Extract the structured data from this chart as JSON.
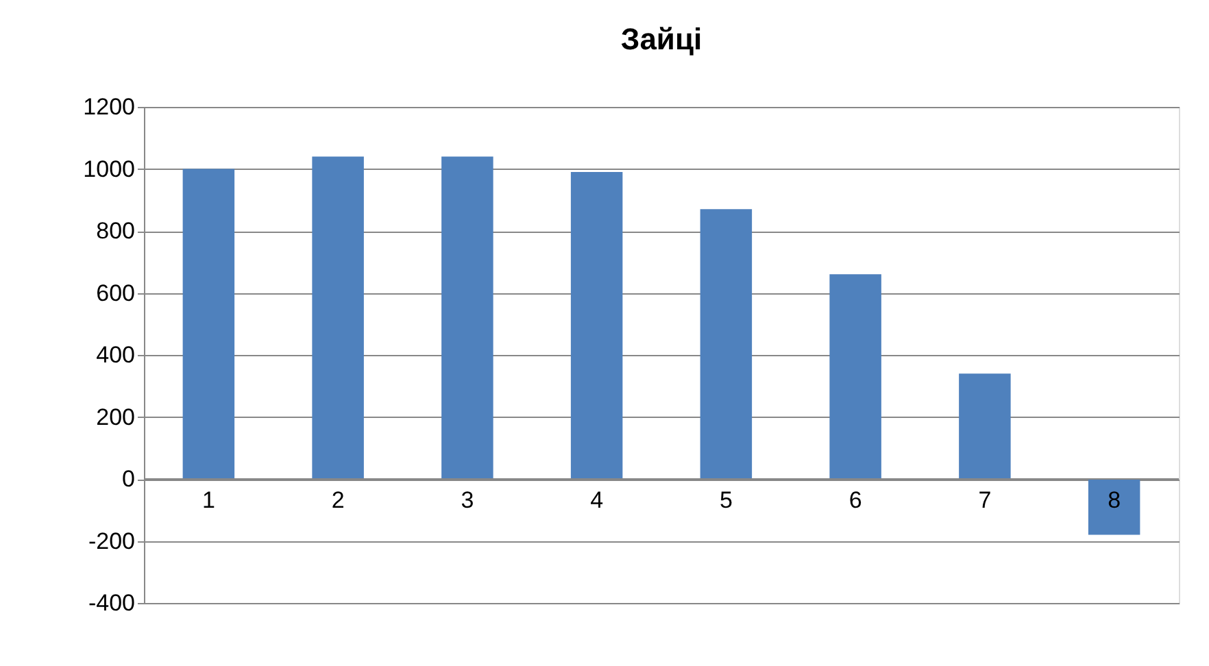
{
  "chart_data": {
    "type": "bar",
    "title": "Зайці",
    "categories": [
      "1",
      "2",
      "3",
      "4",
      "5",
      "6",
      "7",
      "8"
    ],
    "values": [
      1000,
      1040,
      1040,
      990,
      870,
      660,
      340,
      -180
    ],
    "color": "#4f81bd",
    "ylim": [
      -400,
      1200
    ],
    "yticks": [
      -400,
      -200,
      0,
      200,
      400,
      600,
      800,
      1000,
      1200
    ],
    "grid": "y"
  }
}
